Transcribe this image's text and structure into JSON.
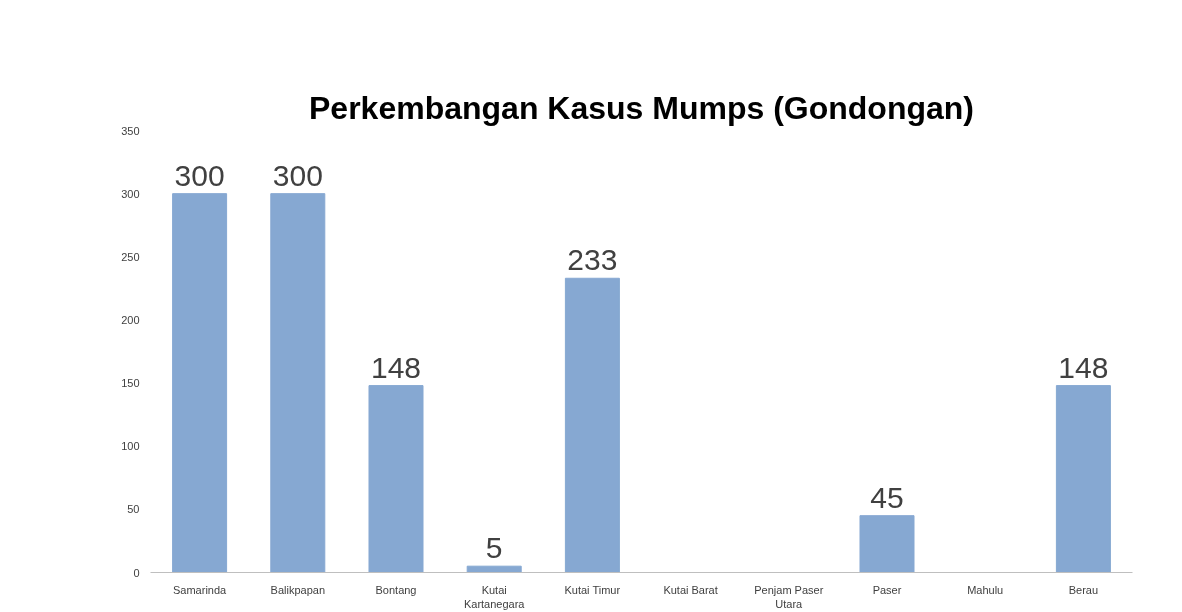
{
  "chart_data": {
    "type": "bar",
    "title": "Perkembangan Kasus Mumps (Gondongan)",
    "categories": [
      "Samarinda",
      "Balikpapan",
      "Bontang",
      "Kutai Kartanegara",
      "Kutai Timur",
      "Kutai Barat",
      "Penjam Paser Utara",
      "Paser",
      "Mahulu",
      "Berau"
    ],
    "values": [
      300,
      300,
      148,
      5,
      233,
      null,
      null,
      45,
      null,
      148
    ],
    "color": "#86a8d2",
    "ylim": [
      0,
      350
    ],
    "yticks": [
      0,
      50,
      100,
      150,
      200,
      250,
      300,
      350
    ],
    "grid": false,
    "data_labels": true
  }
}
